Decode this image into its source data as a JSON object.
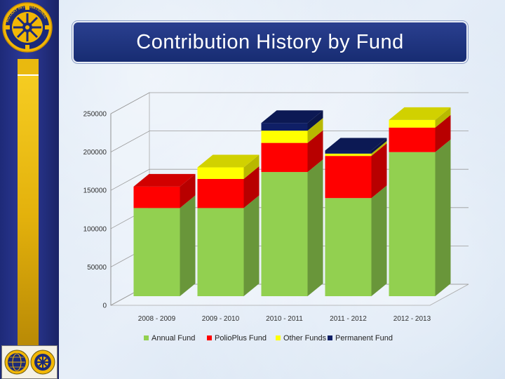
{
  "slide": {
    "title": "Contribution History by Fund"
  },
  "logos": {
    "top_logo": "Rotary International",
    "top_logo_text": "ROTARY INTERNATIONAL"
  },
  "colors": {
    "sidebar": "#1e2a78",
    "gold": "#f2c418",
    "title_bg": "#1f3380"
  },
  "chart_data": {
    "type": "bar",
    "stacked": true,
    "title": "",
    "xlabel": "",
    "ylabel": "",
    "ylim": [
      0,
      250000
    ],
    "yticks": [
      "0",
      "50000",
      "100000",
      "150000",
      "200000",
      "250000"
    ],
    "categories": [
      "2008 - 2009",
      "2009 - 2010",
      "2010 - 2011",
      "2011 - 2012",
      "2012 - 2013"
    ],
    "series": [
      {
        "name": "Annual Fund",
        "color": "#92d050",
        "values": [
          115000,
          115000,
          162000,
          128000,
          188000
        ]
      },
      {
        "name": "PolioPlus Fund",
        "color": "#ff0000",
        "values": [
          28000,
          38000,
          38000,
          55000,
          32000
        ]
      },
      {
        "name": "Other Funds",
        "color": "#ffff00",
        "values": [
          0,
          15000,
          16000,
          3000,
          10000
        ]
      },
      {
        "name": "Permanent Fund",
        "color": "#0f1f66",
        "values": [
          0,
          0,
          10000,
          4000,
          0
        ]
      }
    ],
    "legend_position": "bottom"
  }
}
